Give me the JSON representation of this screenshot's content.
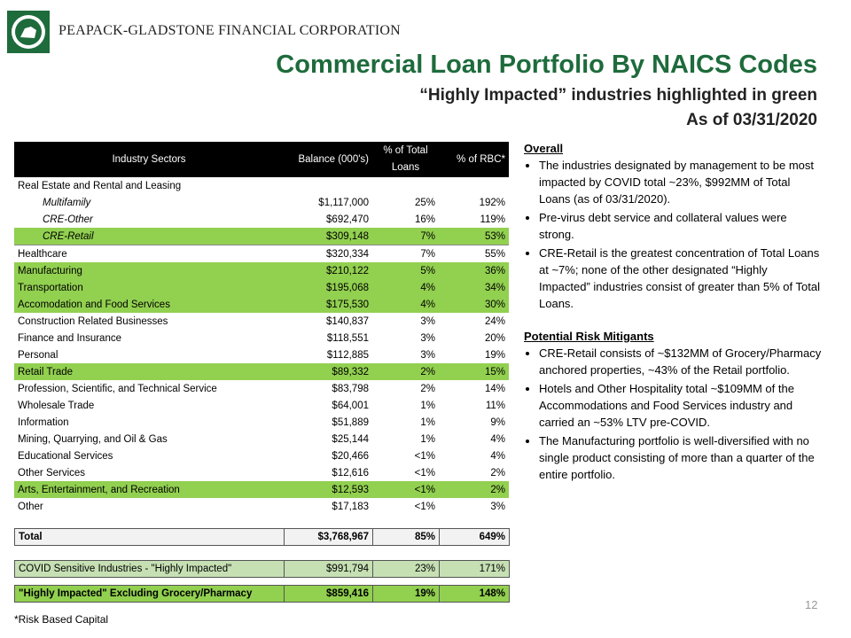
{
  "header": {
    "company": "PEAPACK-GLADSTONE FINANCIAL CORPORATION",
    "title": "Commercial Loan Portfolio By NAICS Codes",
    "subtitle": "“Highly Impacted” industries highlighted in green",
    "date": "As of 03/31/2020"
  },
  "table": {
    "headers": [
      "Industry Sectors",
      "Balance (000's)",
      "% of Total Loans",
      "% of RBC*"
    ],
    "rows": [
      {
        "cells": [
          "Real Estate and Rental and Leasing"
        ]
      },
      {
        "cells": [
          "Multifamily",
          "$1,117,000",
          "25%",
          "192%"
        ],
        "italic": true
      },
      {
        "cells": [
          "CRE-Other",
          "$692,470",
          "16%",
          "119%"
        ],
        "italic": true
      },
      {
        "cells": [
          "CRE-Retail",
          "$309,148",
          "7%",
          "53%"
        ],
        "italic": true,
        "highlight": true
      },
      {
        "cells": [
          "Healthcare",
          "$320,334",
          "7%",
          "55%"
        ]
      },
      {
        "cells": [
          "Manufacturing",
          "$210,122",
          "5%",
          "36%"
        ],
        "highlight": true
      },
      {
        "cells": [
          "Transportation",
          "$195,068",
          "4%",
          "34%"
        ],
        "highlight": true
      },
      {
        "cells": [
          "Accomodation and Food Services",
          "$175,530",
          "4%",
          "30%"
        ],
        "highlight": true
      },
      {
        "cells": [
          "Construction Related Businesses",
          "$140,837",
          "3%",
          "24%"
        ]
      },
      {
        "cells": [
          "Finance and Insurance",
          "$118,551",
          "3%",
          "20%"
        ]
      },
      {
        "cells": [
          "Personal",
          "$112,885",
          "3%",
          "19%"
        ]
      },
      {
        "cells": [
          "Retail Trade",
          "$89,332",
          "2%",
          "15%"
        ],
        "highlight": true
      },
      {
        "cells": [
          "Profession, Scientific, and Technical Service",
          "$83,798",
          "2%",
          "14%"
        ]
      },
      {
        "cells": [
          "Wholesale Trade",
          "$64,001",
          "1%",
          "11%"
        ]
      },
      {
        "cells": [
          "Information",
          "$51,889",
          "1%",
          "9%"
        ]
      },
      {
        "cells": [
          "Mining, Quarrying, and Oil & Gas",
          "$25,144",
          "1%",
          "4%"
        ]
      },
      {
        "cells": [
          "Educational Services",
          "$20,466",
          "<1%",
          "4%"
        ]
      },
      {
        "cells": [
          "Other Services",
          "$12,616",
          "<1%",
          "2%"
        ]
      },
      {
        "cells": [
          "Arts, Entertainment, and Recreation",
          "$12,593",
          "<1%",
          "2%"
        ],
        "highlight": true
      },
      {
        "cells": [
          "Other",
          "$17,183",
          "<1%",
          "3%"
        ]
      }
    ],
    "total": [
      "Total",
      "$3,768,967",
      "85%",
      "649%"
    ],
    "covid": [
      "COVID Sensitive Industries - \"Highly Impacted\"",
      "$991,794",
      "23%",
      "171%"
    ],
    "excluding": [
      "\"Highly Impacted\" Excluding Grocery/Pharmacy",
      "$859,416",
      "19%",
      "148%"
    ]
  },
  "notes": [
    {
      "heading": "Overall",
      "bullets": [
        "The industries designated by management to be most impacted by COVID total ~23%, $992MM of Total Loans (as of 03/31/2020).",
        "Pre-virus debt service and collateral values were strong.",
        "CRE-Retail is the greatest concentration of Total Loans at ~7%; none of the other designated “Highly Impacted” industries consist of greater than 5% of Total Loans."
      ]
    },
    {
      "heading": "Potential Risk Mitigants",
      "bullets": [
        "CRE-Retail consists of ~$132MM of Grocery/Pharmacy  anchored properties, ~43% of the Retail portfolio.",
        "Hotels and Other Hospitality total ~$109MM of the Accommodations  and Food Services industry and carried an ~53% LTV pre-COVID.",
        "The Manufacturing portfolio is well-diversified with no single product consisting of more than a quarter of the entire portfolio."
      ]
    }
  ],
  "footnote": "*Risk Based Capital",
  "page_number": "12"
}
